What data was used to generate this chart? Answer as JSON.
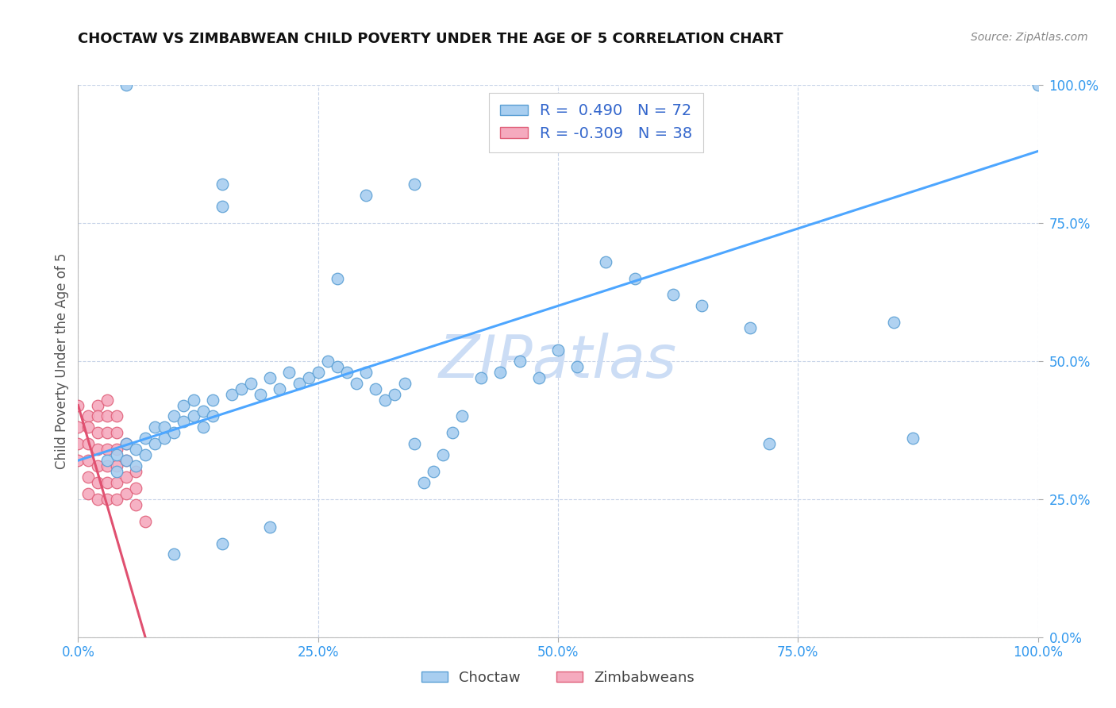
{
  "title": "CHOCTAW VS ZIMBABWEAN CHILD POVERTY UNDER THE AGE OF 5 CORRELATION CHART",
  "source": "Source: ZipAtlas.com",
  "ylabel": "Child Poverty Under the Age of 5",
  "xlim": [
    0.0,
    1.0
  ],
  "ylim": [
    0.0,
    1.0
  ],
  "xtick_labels": [
    "0.0%",
    "25.0%",
    "50.0%",
    "75.0%",
    "100.0%"
  ],
  "xtick_vals": [
    0.0,
    0.25,
    0.5,
    0.75,
    1.0
  ],
  "ytick_labels": [
    "100.0%",
    "75.0%",
    "50.0%",
    "25.0%",
    "0.0%"
  ],
  "ytick_right_labels": [
    "100.0%",
    "75.0%",
    "50.0%",
    "25.0%",
    "0.0%"
  ],
  "ytick_vals": [
    1.0,
    0.75,
    0.5,
    0.25,
    0.0
  ],
  "choctaw_R": 0.49,
  "choctaw_N": 72,
  "zimbabwe_R": -0.309,
  "zimbabwe_N": 38,
  "choctaw_color": "#a8cef0",
  "choctaw_edge": "#5a9fd4",
  "zimbabwe_color": "#f5aabe",
  "zimbabwe_edge": "#e0607a",
  "trend_choctaw_color": "#4da6ff",
  "trend_zimbabwe_color": "#e05070",
  "watermark_color": "#ccddf5",
  "choctaw_x": [
    0.03,
    0.04,
    0.04,
    0.05,
    0.05,
    0.06,
    0.06,
    0.07,
    0.07,
    0.08,
    0.08,
    0.09,
    0.09,
    0.1,
    0.1,
    0.11,
    0.11,
    0.12,
    0.12,
    0.13,
    0.13,
    0.14,
    0.14,
    0.15,
    0.15,
    0.16,
    0.17,
    0.18,
    0.19,
    0.2,
    0.21,
    0.22,
    0.23,
    0.24,
    0.25,
    0.26,
    0.27,
    0.28,
    0.29,
    0.3,
    0.31,
    0.32,
    0.33,
    0.34,
    0.35,
    0.36,
    0.37,
    0.38,
    0.39,
    0.4,
    0.42,
    0.44,
    0.46,
    0.48,
    0.5,
    0.52,
    0.55,
    0.58,
    0.62,
    0.65,
    0.7,
    0.72,
    0.85,
    0.87,
    1.0,
    0.3,
    0.35,
    0.27,
    0.2,
    0.15,
    0.1,
    0.05
  ],
  "choctaw_y": [
    0.32,
    0.33,
    0.3,
    0.35,
    0.32,
    0.34,
    0.31,
    0.36,
    0.33,
    0.38,
    0.35,
    0.38,
    0.36,
    0.4,
    0.37,
    0.42,
    0.39,
    0.43,
    0.4,
    0.41,
    0.38,
    0.43,
    0.4,
    0.82,
    0.78,
    0.44,
    0.45,
    0.46,
    0.44,
    0.47,
    0.45,
    0.48,
    0.46,
    0.47,
    0.48,
    0.5,
    0.49,
    0.48,
    0.46,
    0.48,
    0.45,
    0.43,
    0.44,
    0.46,
    0.35,
    0.28,
    0.3,
    0.33,
    0.37,
    0.4,
    0.47,
    0.48,
    0.5,
    0.47,
    0.52,
    0.49,
    0.68,
    0.65,
    0.62,
    0.6,
    0.56,
    0.35,
    0.57,
    0.36,
    1.0,
    0.8,
    0.82,
    0.65,
    0.2,
    0.17,
    0.15,
    1.0
  ],
  "zimbabwe_x": [
    0.0,
    0.0,
    0.0,
    0.0,
    0.01,
    0.01,
    0.01,
    0.01,
    0.01,
    0.01,
    0.02,
    0.02,
    0.02,
    0.02,
    0.02,
    0.02,
    0.02,
    0.03,
    0.03,
    0.03,
    0.03,
    0.03,
    0.03,
    0.03,
    0.04,
    0.04,
    0.04,
    0.04,
    0.04,
    0.04,
    0.05,
    0.05,
    0.05,
    0.05,
    0.06,
    0.06,
    0.06,
    0.07
  ],
  "zimbabwe_y": [
    0.42,
    0.38,
    0.35,
    0.32,
    0.4,
    0.38,
    0.35,
    0.32,
    0.29,
    0.26,
    0.42,
    0.4,
    0.37,
    0.34,
    0.31,
    0.28,
    0.25,
    0.43,
    0.4,
    0.37,
    0.34,
    0.31,
    0.28,
    0.25,
    0.4,
    0.37,
    0.34,
    0.31,
    0.28,
    0.25,
    0.35,
    0.32,
    0.29,
    0.26,
    0.3,
    0.27,
    0.24,
    0.21
  ],
  "trend_c_x0": 0.0,
  "trend_c_y0": 0.32,
  "trend_c_x1": 1.0,
  "trend_c_y1": 0.88,
  "trend_z_x0": 0.0,
  "trend_z_y0": 0.42,
  "trend_z_x1": 0.07,
  "trend_z_y1": 0.0
}
